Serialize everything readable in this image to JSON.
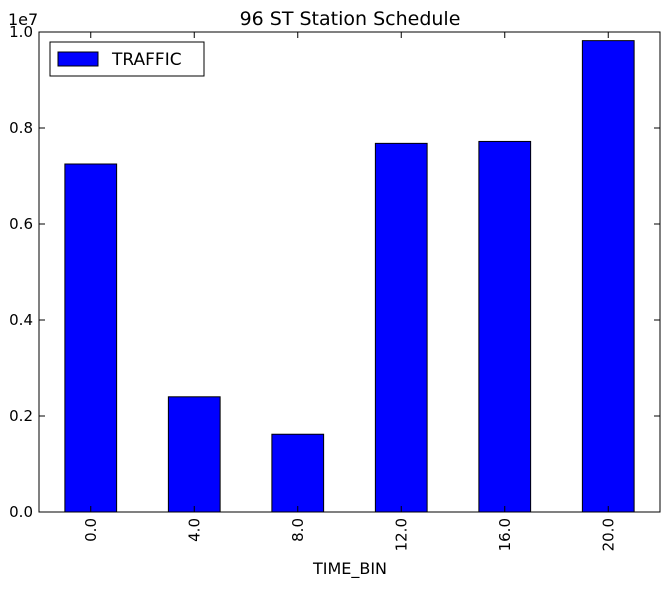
{
  "chart_data": {
    "type": "bar",
    "title": "96 ST Station Schedule",
    "xlabel": "TIME_BIN",
    "ylabel": "",
    "categories": [
      "0.0",
      "4.0",
      "8.0",
      "12.0",
      "16.0",
      "20.0"
    ],
    "series": [
      {
        "name": "TRAFFIC",
        "values": [
          7250000,
          2400000,
          1620000,
          7680000,
          7720000,
          9820000
        ],
        "color": "#0000ff"
      }
    ],
    "ylim": [
      0,
      10000000
    ],
    "yticks": [
      0,
      2000000,
      4000000,
      6000000,
      8000000,
      10000000
    ],
    "ytick_labels": [
      "0.0",
      "0.2",
      "0.4",
      "0.6",
      "0.8",
      "1.0"
    ],
    "y_offset_label": "1e7",
    "legend_position": "top-left",
    "grid": false,
    "bar_edge_color": "#000000"
  }
}
